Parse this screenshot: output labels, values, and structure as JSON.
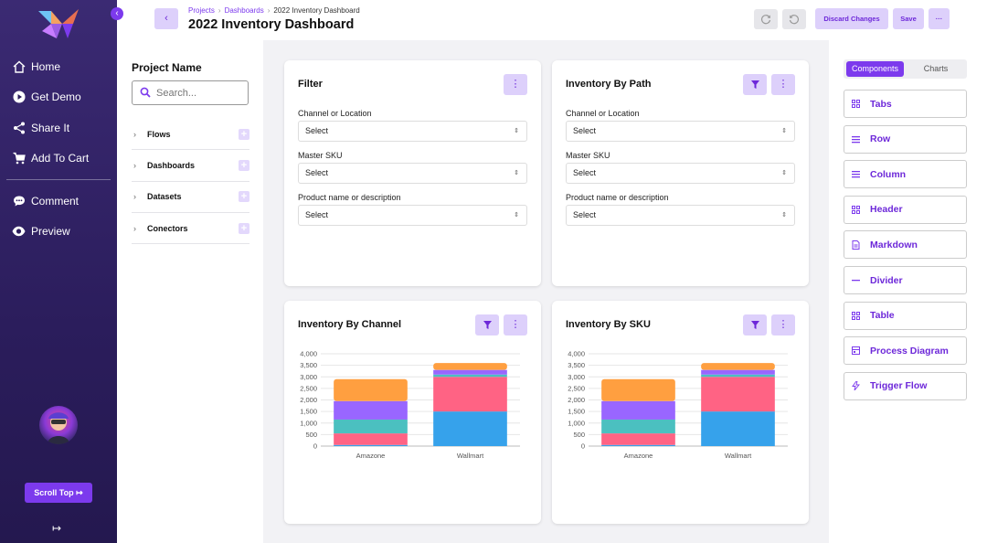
{
  "sidebar": {
    "nav": [
      {
        "label": "Home",
        "icon": "home-icon"
      },
      {
        "label": "Get Demo",
        "icon": "play-icon"
      },
      {
        "label": "Share It",
        "icon": "share-icon"
      },
      {
        "label": "Add To Cart",
        "icon": "cart-icon"
      }
    ],
    "nav2": [
      {
        "label": "Comment",
        "icon": "comment-icon"
      },
      {
        "label": "Preview",
        "icon": "eye-icon"
      }
    ],
    "scroll_top": "Scroll Top ↦",
    "logout_icon": "↦"
  },
  "header": {
    "breadcrumbs": [
      "Projects",
      "Dashboards",
      "2022 Inventory Dashboard"
    ],
    "title": "2022 Inventory Dashboard",
    "discard": "Discard Changes",
    "save": "Save",
    "more": "···"
  },
  "project": {
    "title": "Project Name",
    "search_placeholder": "Search...",
    "items": [
      "Flows",
      "Dashboards",
      "Datasets",
      "Conectors"
    ]
  },
  "filter_card": {
    "title": "Filter",
    "fields": [
      {
        "label": "Channel or Location",
        "value": "Select"
      },
      {
        "label": "Master SKU",
        "value": "Select"
      },
      {
        "label": "Product name or description",
        "value": "Select"
      }
    ]
  },
  "path_card": {
    "title": "Inventory By Path",
    "fields": [
      {
        "label": "Channel or Location",
        "value": "Select"
      },
      {
        "label": "Master SKU",
        "value": "Select"
      },
      {
        "label": "Product name or description",
        "value": "Select"
      }
    ]
  },
  "chart_data": [
    {
      "type": "bar",
      "title": "Inventory By Channel",
      "categories": [
        "Amazone",
        "Wallmart"
      ],
      "stacked": true,
      "ylim": [
        0,
        4000
      ],
      "yticks": [
        "0",
        "500",
        "1,000",
        "1,500",
        "2,000",
        "2,500",
        "3,000",
        "3,500",
        "4,000"
      ],
      "series": [
        {
          "color": "#36a2eb",
          "values": [
            50,
            1500
          ]
        },
        {
          "color": "#ff6384",
          "values": [
            500,
            1500
          ]
        },
        {
          "color": "#4bc0c0",
          "values": [
            600,
            100
          ]
        },
        {
          "color": "#9966ff",
          "values": [
            800,
            200
          ]
        },
        {
          "color": "#ff9f40",
          "values": [
            950,
            300
          ]
        }
      ],
      "grid": true
    },
    {
      "type": "bar",
      "title": "Inventory By SKU",
      "categories": [
        "Amazone",
        "Wallmart"
      ],
      "stacked": true,
      "ylim": [
        0,
        4000
      ],
      "yticks": [
        "0",
        "500",
        "1,000",
        "1,500",
        "2,000",
        "2,500",
        "3,000",
        "3,500",
        "4,000"
      ],
      "series": [
        {
          "color": "#36a2eb",
          "values": [
            50,
            1500
          ]
        },
        {
          "color": "#ff6384",
          "values": [
            500,
            1500
          ]
        },
        {
          "color": "#4bc0c0",
          "values": [
            600,
            100
          ]
        },
        {
          "color": "#9966ff",
          "values": [
            800,
            200
          ]
        },
        {
          "color": "#ff9f40",
          "values": [
            950,
            300
          ]
        }
      ],
      "grid": true
    }
  ],
  "components": {
    "tabs": [
      "Components",
      "Charts"
    ],
    "items": [
      {
        "label": "Tabs",
        "icon": "grid-icon"
      },
      {
        "label": "Row",
        "icon": "rows-icon"
      },
      {
        "label": "Column",
        "icon": "rows-icon"
      },
      {
        "label": "Header",
        "icon": "grid-icon"
      },
      {
        "label": "Markdown",
        "icon": "document-icon"
      },
      {
        "label": "Divider",
        "icon": "minus-icon"
      },
      {
        "label": "Table",
        "icon": "grid-icon"
      },
      {
        "label": "Process Diagram",
        "icon": "diagram-icon"
      },
      {
        "label": "Trigger Flow",
        "icon": "bolt-icon"
      }
    ]
  },
  "colors": {
    "accent": "#7c3aed",
    "accent_light": "#ddd0fb",
    "sidebar": "#2b1d5c"
  }
}
